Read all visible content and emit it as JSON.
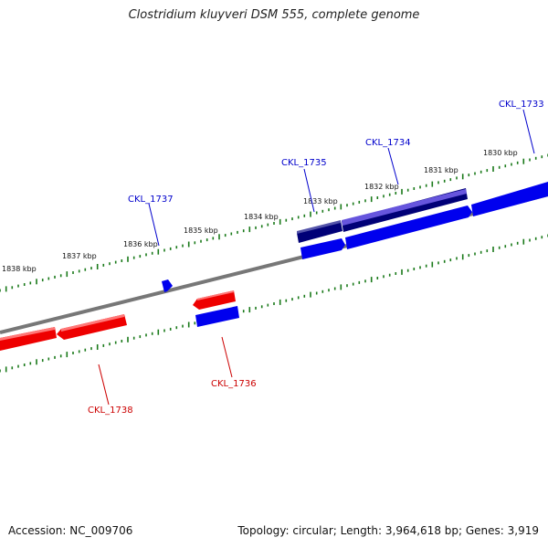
{
  "title": "Clostridium kluyveri DSM 555, complete genome",
  "footer": {
    "accession": "Accession: NC_009706",
    "summary": "Topology: circular; Length: 3,964,618 bp; Genes: 3,919"
  },
  "colors": {
    "backbone": "#777777",
    "ticks": "#1a7a1a",
    "reverse_strand": "#ee0000",
    "forward_strand": "#0000ee",
    "forward_dark": "#000077",
    "forward_light": "#6655dd",
    "label_forward": "#0000cc",
    "label_reverse": "#cc0000"
  },
  "scale_labels": [
    "1838 kbp",
    "1837 kbp",
    "1836 kbp",
    "1835 kbp",
    "1834 kbp",
    "1833 kbp",
    "1832 kbp",
    "1831 kbp",
    "1830 kbp"
  ],
  "gene_labels": [
    {
      "id": "CKL_1737",
      "strand": "forward"
    },
    {
      "id": "CKL_1735",
      "strand": "forward"
    },
    {
      "id": "CKL_1734",
      "strand": "forward"
    },
    {
      "id": "CKL_1733",
      "strand": "forward"
    },
    {
      "id": "CKL_1736",
      "strand": "reverse"
    },
    {
      "id": "CKL_1738",
      "strand": "reverse"
    }
  ]
}
